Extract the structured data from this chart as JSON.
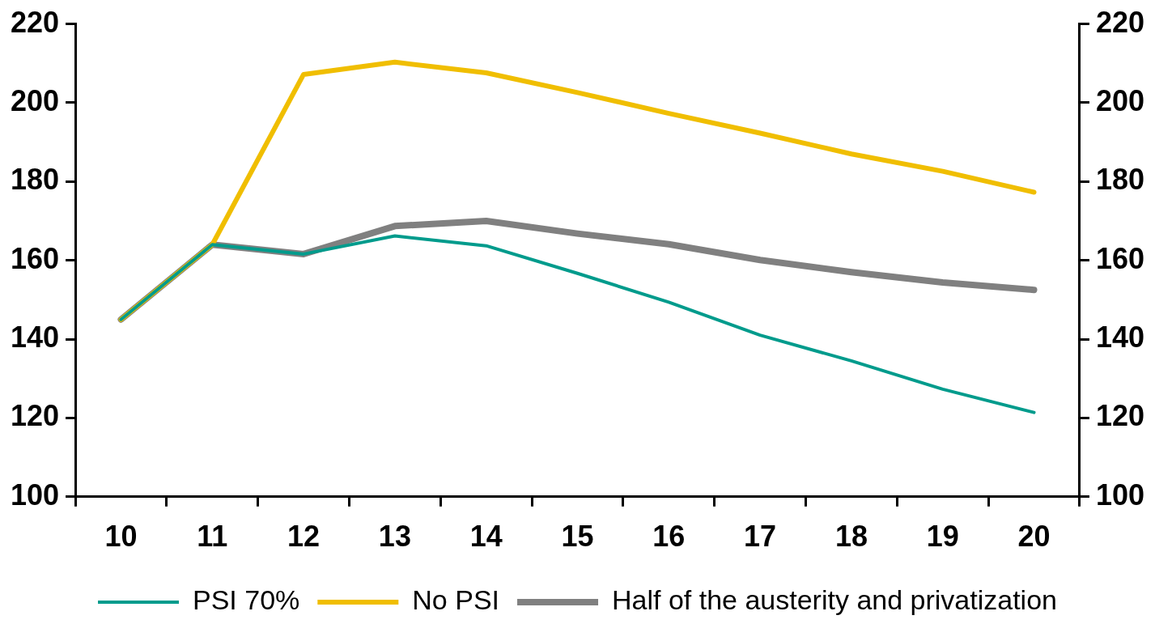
{
  "chart_data": {
    "type": "line",
    "categories": [
      "10",
      "11",
      "12",
      "13",
      "14",
      "15",
      "16",
      "17",
      "18",
      "19",
      "20"
    ],
    "series": [
      {
        "name": "PSI 70%",
        "color": "#009b8c",
        "values": [
          145,
          164,
          161.6,
          166.2,
          163.7,
          156.7,
          149.4,
          141,
          134.5,
          127.3,
          121.4
        ]
      },
      {
        "name": "No PSI",
        "color": "#f0be00",
        "values": [
          145,
          164,
          207.2,
          210.3,
          207.6,
          202.6,
          197.3,
          192.3,
          187,
          182.6,
          177.3
        ]
      },
      {
        "name": "Half of the austerity and privatization",
        "color": "#808080",
        "values": [
          145,
          164,
          161.6,
          168.7,
          170,
          166.8,
          164.1,
          160.1,
          157,
          154.4,
          152.5
        ]
      }
    ],
    "ylim": [
      100,
      220
    ],
    "yticks": [
      100,
      120,
      140,
      160,
      180,
      200,
      220
    ],
    "y2lim": [
      100,
      220
    ],
    "y2ticks": [
      100,
      120,
      140,
      160,
      180,
      200,
      220
    ],
    "grid": false,
    "legend": "bottom",
    "marker": "none",
    "line_style": "solid"
  }
}
